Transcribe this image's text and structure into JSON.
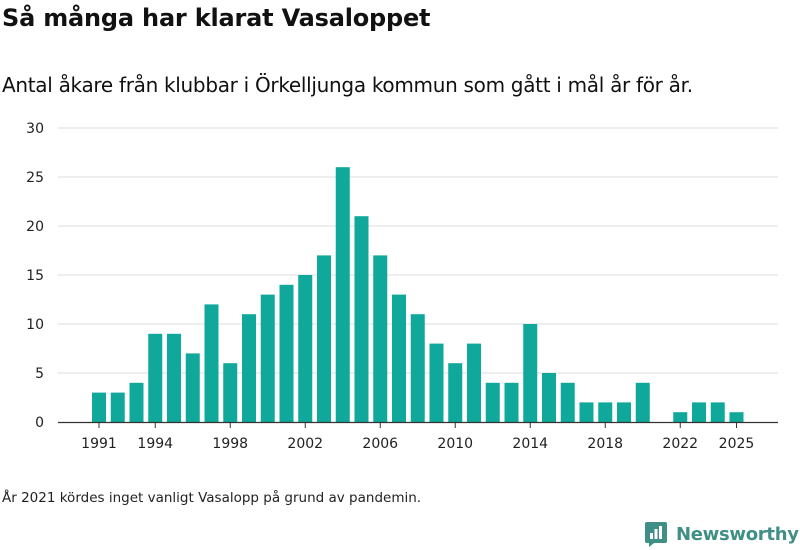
{
  "title": "Så många har klarat Vasaloppet",
  "subtitle": "Antal åkare från klubbar i Örkelljunga kommun som gått i mål år för år.",
  "footnote": "År 2021 kördes inget vanligt Vasalopp på grund av pandemin.",
  "brand": {
    "name": "Newsworthy",
    "icon": "newsworthy-logo-icon",
    "color": "#3f8f86"
  },
  "chart_data": {
    "type": "bar",
    "title": "Så många har klarat Vasaloppet",
    "xlabel": "",
    "ylabel": "",
    "bar_color": "#0fa89a",
    "grid_color": "#dddddd",
    "ylim": [
      0,
      30
    ],
    "yticks": [
      0,
      5,
      10,
      15,
      20,
      25,
      30
    ],
    "xticks": [
      1991,
      1994,
      1998,
      2002,
      2006,
      2010,
      2014,
      2018,
      2022,
      2025
    ],
    "categories": [
      1991,
      1992,
      1993,
      1994,
      1995,
      1996,
      1997,
      1998,
      1999,
      2000,
      2001,
      2002,
      2003,
      2004,
      2005,
      2006,
      2007,
      2008,
      2009,
      2010,
      2011,
      2012,
      2013,
      2014,
      2015,
      2016,
      2017,
      2018,
      2019,
      2020,
      2021,
      2022,
      2023,
      2024,
      2025
    ],
    "values": [
      3,
      3,
      4,
      9,
      9,
      7,
      12,
      6,
      11,
      13,
      14,
      15,
      17,
      26,
      21,
      17,
      13,
      11,
      8,
      6,
      8,
      4,
      4,
      10,
      5,
      4,
      2,
      2,
      2,
      4,
      null,
      1,
      2,
      2,
      1
    ]
  }
}
